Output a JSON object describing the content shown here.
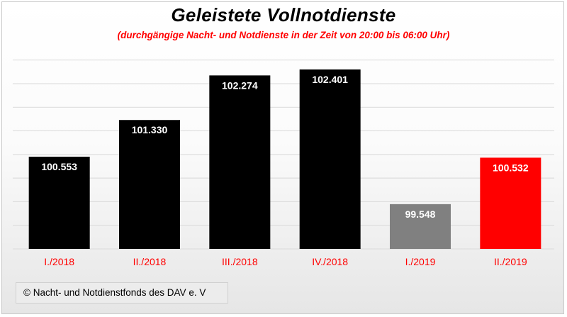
{
  "title": "Geleistete  Vollnotdienste",
  "subtitle": "(durchgängige Nacht- und Notdienste in der Zeit von 20:00 bis 06:00 Uhr)",
  "footer": "© Nacht- und Notdienstfonds  des DAV e. V",
  "chart_data": {
    "type": "bar",
    "title": "Geleistete  Vollnotdienste",
    "subtitle": "(durchgängige Nacht- und Notdienste in der Zeit von 20:00 bis 06:00 Uhr)",
    "categories": [
      "I./2018",
      "II./2018",
      "III./2018",
      "IV./2018",
      "I./2019",
      "II./2019"
    ],
    "values": [
      100553,
      101330,
      102274,
      102401,
      99548,
      100532
    ],
    "data_labels": [
      "100.553",
      "101.330",
      "102.274",
      "102.401",
      "99.548",
      "100.532"
    ],
    "bar_colors": [
      "#000000",
      "#000000",
      "#000000",
      "#000000",
      "#808080",
      "#ff0000"
    ],
    "label_colors": [
      "#ffffff",
      "#ffffff",
      "#ffffff",
      "#ffffff",
      "#ffffff",
      "#ffffff"
    ],
    "category_label_color": "#ff0000",
    "ylim": [
      98600,
      102700
    ],
    "gridlines": [
      98600,
      99100,
      99600,
      100100,
      100600,
      101100,
      101600,
      102100,
      102600
    ],
    "grid": true,
    "legend": "none"
  }
}
